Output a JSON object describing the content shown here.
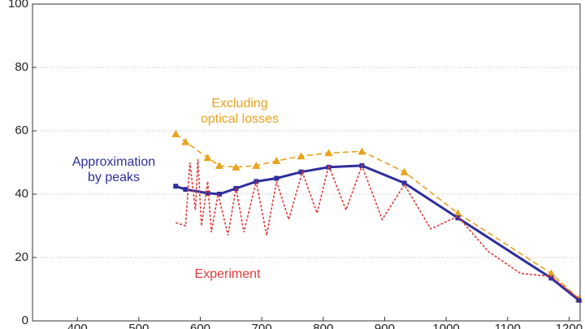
{
  "chart_data": {
    "type": "line",
    "xlim": [
      327,
      1218
    ],
    "xticks": [
      400,
      500,
      600,
      700,
      800,
      900,
      1000,
      1100,
      1200
    ],
    "ylim": [
      0,
      100
    ],
    "yticks": [
      0,
      20,
      40,
      60,
      80,
      100
    ],
    "grid": true,
    "series": [
      {
        "label_lines": [
          "Excluding",
          "optical losses"
        ],
        "color": "#e9a21c",
        "marker": "triangle",
        "dash": "dashed",
        "x": [
          560,
          576,
          612,
          631,
          658,
          691,
          724,
          764,
          809,
          863,
          932,
          1019,
          1171,
          1216
        ],
        "values": [
          59,
          56.5,
          51.5,
          49,
          48.5,
          49,
          50.5,
          52,
          53,
          53.5,
          47,
          34,
          15,
          7
        ]
      },
      {
        "label_lines": [
          "Approximation",
          "by peaks"
        ],
        "color": "#2e2e9e",
        "marker": "square",
        "dash": "solid",
        "x": [
          560,
          576,
          612,
          631,
          658,
          691,
          724,
          764,
          809,
          863,
          932,
          1019,
          1171,
          1216
        ],
        "values": [
          42.5,
          41.5,
          40.3,
          40,
          41.8,
          44,
          45,
          47,
          48.5,
          49,
          43.5,
          32.5,
          13.5,
          6.5
        ]
      },
      {
        "label_lines": [
          "Experiment"
        ],
        "color": "#e03a3a",
        "marker": "none",
        "dash": "dotted",
        "x": [
          560,
          576,
          583,
          592,
          596,
          602,
          612,
          618,
          629,
          645,
          658,
          671,
          691,
          708,
          724,
          744,
          766,
          790,
          809,
          837,
          863,
          896,
          932,
          975,
          1019,
          1068,
          1121,
          1171,
          1216
        ],
        "values": [
          31,
          30,
          50,
          35,
          51,
          30,
          44,
          28,
          40,
          27,
          42,
          28,
          44,
          27,
          44,
          32,
          47,
          34,
          49,
          35,
          49,
          32,
          43,
          29,
          33,
          22,
          15,
          14,
          7
        ]
      }
    ]
  }
}
